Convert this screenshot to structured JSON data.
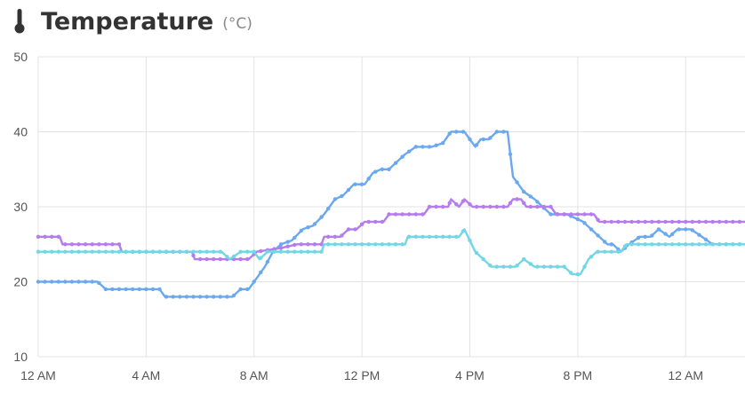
{
  "header": {
    "title": "Temperature",
    "unit": "(°C)",
    "icon": "thermometer-icon"
  },
  "chart_data": {
    "type": "line",
    "title": "Temperature",
    "ylabel": "",
    "xlabel": "",
    "ylim": [
      10,
      50
    ],
    "yticks": [
      "10",
      "20",
      "30",
      "40",
      "50"
    ],
    "x_ticks": [
      {
        "label": "12 AM",
        "h": 0
      },
      {
        "label": "4 AM",
        "h": 4
      },
      {
        "label": "8 AM",
        "h": 8
      },
      {
        "label": "12 PM",
        "h": 12
      },
      {
        "label": "4 PM",
        "h": 16
      },
      {
        "label": "8 PM",
        "h": 20
      },
      {
        "label": "12 AM",
        "h": 24
      }
    ],
    "xlim_hours": [
      0,
      26.2
    ],
    "grid": true,
    "legend": "none",
    "series": [
      {
        "color": "#6aa8ef",
        "points": [
          [
            0,
            20
          ],
          [
            2.2,
            20
          ],
          [
            2.5,
            19
          ],
          [
            4.5,
            19
          ],
          [
            4.7,
            18
          ],
          [
            7.2,
            18
          ],
          [
            7.5,
            19
          ],
          [
            7.8,
            19
          ],
          [
            8.1,
            20.5
          ],
          [
            8.4,
            22
          ],
          [
            8.7,
            24
          ],
          [
            9,
            25
          ],
          [
            9.4,
            25.5
          ],
          [
            9.8,
            27
          ],
          [
            10.2,
            27.5
          ],
          [
            10.6,
            29
          ],
          [
            11,
            31
          ],
          [
            11.3,
            31.5
          ],
          [
            11.7,
            33
          ],
          [
            12.1,
            33
          ],
          [
            12.4,
            34.5
          ],
          [
            12.7,
            35
          ],
          [
            13,
            35
          ],
          [
            13.3,
            36
          ],
          [
            13.6,
            37
          ],
          [
            14,
            38
          ],
          [
            14.6,
            38
          ],
          [
            15,
            38.5
          ],
          [
            15.3,
            40
          ],
          [
            15.8,
            40
          ],
          [
            16.2,
            38
          ],
          [
            16.4,
            39
          ],
          [
            16.7,
            39
          ],
          [
            17,
            40
          ],
          [
            17.4,
            40
          ],
          [
            17.6,
            34
          ],
          [
            18,
            32
          ],
          [
            18.4,
            31
          ],
          [
            18.7,
            30
          ],
          [
            19,
            29
          ],
          [
            19.6,
            29
          ],
          [
            20.2,
            28
          ],
          [
            20.5,
            27
          ],
          [
            20.8,
            26
          ],
          [
            21.1,
            25
          ],
          [
            21.3,
            25
          ],
          [
            21.6,
            24
          ],
          [
            21.9,
            25
          ],
          [
            22.3,
            26
          ],
          [
            22.7,
            26
          ],
          [
            23,
            27
          ],
          [
            23.4,
            26
          ],
          [
            23.7,
            27
          ],
          [
            24.2,
            27
          ],
          [
            24.6,
            26
          ],
          [
            25,
            25
          ],
          [
            26.2,
            25
          ]
        ]
      },
      {
        "color": "#b47cef",
        "points": [
          [
            0,
            26
          ],
          [
            0.8,
            26
          ],
          [
            0.9,
            25
          ],
          [
            3,
            25
          ],
          [
            3.1,
            24
          ],
          [
            5.7,
            24
          ],
          [
            5.8,
            23
          ],
          [
            7.8,
            23
          ],
          [
            8.1,
            24
          ],
          [
            9,
            24.5
          ],
          [
            9.6,
            25
          ],
          [
            10.5,
            25
          ],
          [
            10.6,
            26
          ],
          [
            11.2,
            26
          ],
          [
            11.5,
            27
          ],
          [
            11.8,
            27
          ],
          [
            12.1,
            28
          ],
          [
            12.8,
            28
          ],
          [
            13,
            29
          ],
          [
            14.3,
            29
          ],
          [
            14.5,
            30
          ],
          [
            15.2,
            30
          ],
          [
            15.3,
            31
          ],
          [
            15.6,
            30
          ],
          [
            15.8,
            31
          ],
          [
            16.1,
            30
          ],
          [
            17.4,
            30
          ],
          [
            17.6,
            31
          ],
          [
            17.9,
            31
          ],
          [
            18.1,
            30
          ],
          [
            19,
            30
          ],
          [
            19.2,
            29
          ],
          [
            20.6,
            29
          ],
          [
            20.8,
            28
          ],
          [
            26.2,
            28
          ]
        ]
      },
      {
        "color": "#72d6e6",
        "points": [
          [
            0,
            24
          ],
          [
            5.3,
            24
          ],
          [
            6.8,
            24
          ],
          [
            7.1,
            23
          ],
          [
            7.5,
            24
          ],
          [
            8,
            24
          ],
          [
            8.2,
            23
          ],
          [
            8.5,
            24
          ],
          [
            10.5,
            24
          ],
          [
            10.6,
            25
          ],
          [
            13.6,
            25
          ],
          [
            13.7,
            26
          ],
          [
            15.6,
            26
          ],
          [
            15.8,
            27
          ],
          [
            16.2,
            24
          ],
          [
            16.5,
            23
          ],
          [
            16.8,
            22
          ],
          [
            17.7,
            22
          ],
          [
            18,
            23
          ],
          [
            18.4,
            22
          ],
          [
            19.5,
            22
          ],
          [
            19.8,
            21
          ],
          [
            20.1,
            21
          ],
          [
            20.4,
            23
          ],
          [
            20.7,
            24
          ],
          [
            21.6,
            24
          ],
          [
            21.8,
            25
          ],
          [
            26.2,
            25
          ]
        ]
      }
    ]
  }
}
